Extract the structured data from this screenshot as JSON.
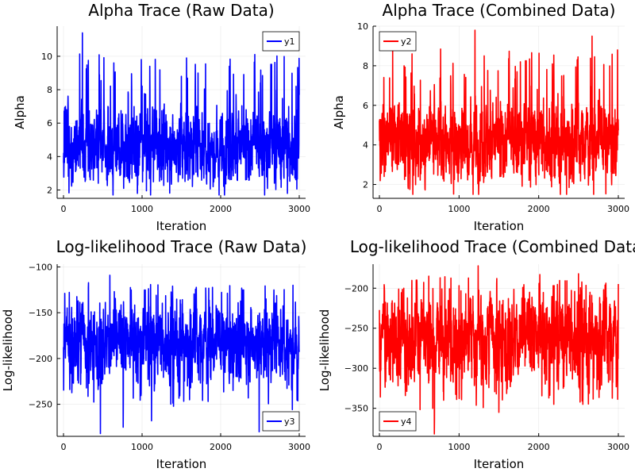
{
  "chart_data": [
    {
      "type": "line",
      "title": "Alpha Trace (Raw Data)",
      "xlabel": "Iteration",
      "ylabel": "Alpha",
      "xlim": [
        0,
        3000
      ],
      "ylim": [
        1.5,
        11.8
      ],
      "xticks": [
        0,
        1000,
        2000,
        3000
      ],
      "yticks": [
        2,
        4,
        6,
        8,
        10
      ],
      "grid": true,
      "legend_position": "top-right",
      "series": [
        {
          "name": "y1",
          "color": "#0000ff",
          "mean": 4.6,
          "spread": 1.05,
          "min": 1.7,
          "max": 11.4,
          "spikes": [
            [
              240,
              11.4
            ],
            [
              640,
              9.6
            ],
            [
              990,
              9.8
            ],
            [
              1500,
              8.8
            ],
            [
              2110,
              9.4
            ],
            [
              2960,
              8.2
            ]
          ],
          "dips": [
            [
              940,
              1.8
            ],
            [
              2560,
              1.7
            ],
            [
              2850,
              1.8
            ]
          ]
        }
      ]
    },
    {
      "type": "line",
      "title": "Alpha Trace (Combined Data)",
      "xlabel": "Iteration",
      "ylabel": "Alpha",
      "xlim": [
        0,
        3000
      ],
      "ylim": [
        1.3,
        10.0
      ],
      "xticks": [
        0,
        1000,
        2000,
        3000
      ],
      "yticks": [
        2,
        4,
        6,
        8,
        10
      ],
      "grid": true,
      "legend_position": "top-left",
      "series": [
        {
          "name": "y2",
          "color": "#ff0000",
          "mean": 4.2,
          "spread": 0.95,
          "min": 1.5,
          "max": 9.8,
          "spikes": [
            [
              1200,
              9.8
            ],
            [
              410,
              8.6
            ],
            [
              1770,
              8.2
            ],
            [
              2670,
              9.5
            ],
            [
              2990,
              8.8
            ],
            [
              310,
              8.0
            ]
          ],
          "dips": [
            [
              2350,
              1.5
            ],
            [
              2690,
              1.5
            ]
          ]
        }
      ]
    },
    {
      "type": "line",
      "title": "Log-likelihood Trace (Raw Data)",
      "xlabel": "Iteration",
      "ylabel": "Log-likelihood",
      "xlim": [
        0,
        3000
      ],
      "ylim": [
        -285,
        -97
      ],
      "xticks": [
        0,
        1000,
        2000,
        3000
      ],
      "yticks": [
        -250,
        -200,
        -150,
        -100
      ],
      "grid": true,
      "legend_position": "bottom-right",
      "series": [
        {
          "name": "y3",
          "color": "#0000ff",
          "mean": -183,
          "spread": 19,
          "min": -283,
          "max": -103,
          "spikes": [
            [
              590,
              -109
            ],
            [
              2920,
              -120
            ],
            [
              1810,
              -123
            ]
          ],
          "dips": [
            [
              470,
              -282
            ],
            [
              760,
              -275
            ],
            [
              2490,
              -280
            ],
            [
              1120,
              -268
            ]
          ]
        }
      ]
    },
    {
      "type": "line",
      "title": "Log-likelihood Trace (Combined Data)",
      "xlabel": "Iteration",
      "ylabel": "Log-likelihood",
      "xlim": [
        0,
        3000
      ],
      "ylim": [
        -385,
        -170
      ],
      "xticks": [
        0,
        1000,
        2000,
        3000
      ],
      "yticks": [
        -350,
        -300,
        -250,
        -200
      ],
      "grid": true,
      "legend_position": "bottom-left",
      "series": [
        {
          "name": "y4",
          "color": "#ff0000",
          "mean": -262,
          "spread": 26,
          "min": -382,
          "max": -172,
          "spikes": [
            [
              1240,
              -172
            ],
            [
              620,
              -185
            ],
            [
              2500,
              -182
            ]
          ],
          "dips": [
            [
              690,
              -382
            ],
            [
              670,
              -350
            ],
            [
              1500,
              -355
            ],
            [
              2190,
              -345
            ]
          ]
        }
      ]
    }
  ]
}
